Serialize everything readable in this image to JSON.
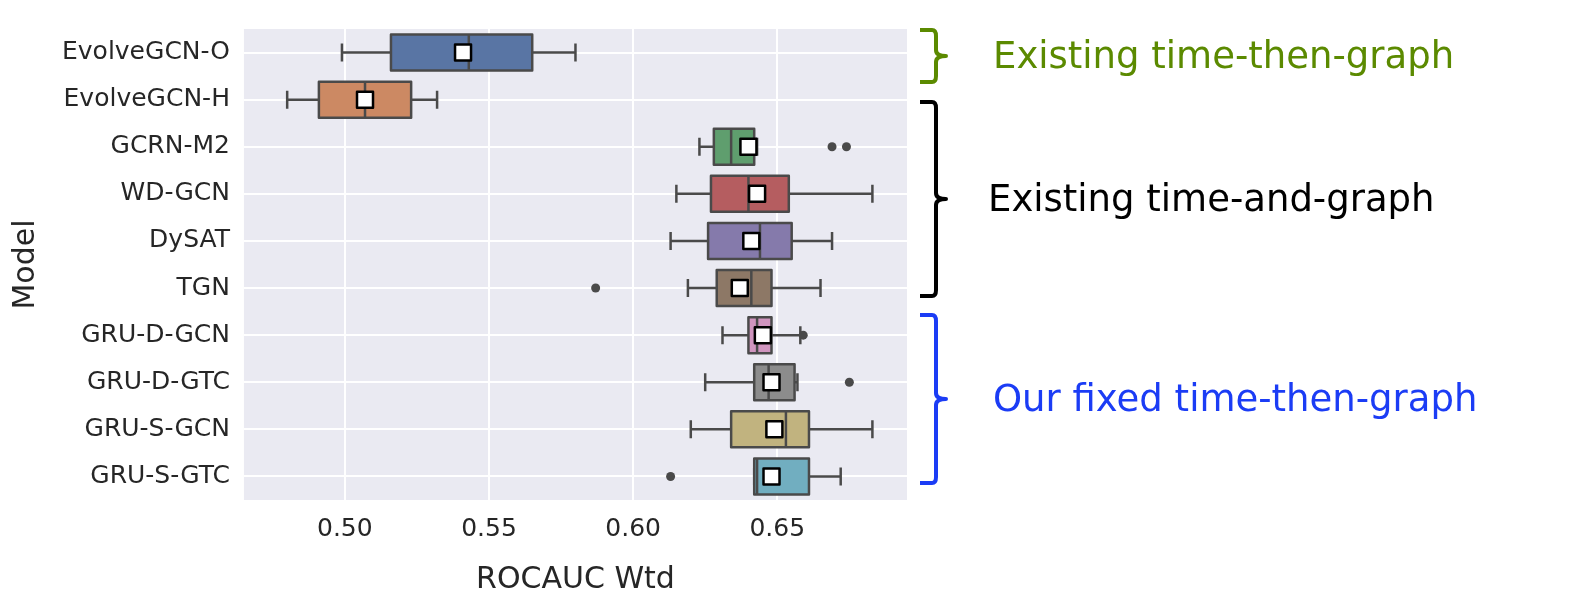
{
  "chart_data": {
    "type": "box",
    "xlabel": "ROCAUC Wtd",
    "ylabel": "Model",
    "orientation": "horizontal",
    "categories": [
      "EvolveGCN-O",
      "EvolveGCN-H",
      "GCRN-M2",
      "WD-GCN",
      "DySAT",
      "TGN",
      "GRU-D-GCN",
      "GRU-D-GTC",
      "GRU-S-GCN",
      "GRU-S-GTC"
    ],
    "colors": [
      "#5975a4",
      "#cc8963",
      "#5f9e6e",
      "#b55d60",
      "#857aab",
      "#8d7866",
      "#d095bf",
      "#8c8c8c",
      "#c1b37f",
      "#71aec0"
    ],
    "boxes": [
      {
        "low": 0.499,
        "q1": 0.516,
        "median": 0.543,
        "q3": 0.565,
        "high": 0.58,
        "mean": 0.541
      },
      {
        "low": 0.48,
        "q1": 0.491,
        "median": 0.507,
        "q3": 0.523,
        "high": 0.532,
        "mean": 0.507
      },
      {
        "low": 0.623,
        "q1": 0.628,
        "median": 0.634,
        "q3": 0.642,
        "high": 0.643,
        "mean": 0.64,
        "outliers": [
          0.669,
          0.674
        ]
      },
      {
        "low": 0.615,
        "q1": 0.627,
        "median": 0.64,
        "q3": 0.654,
        "high": 0.683,
        "mean": 0.643
      },
      {
        "low": 0.613,
        "q1": 0.626,
        "median": 0.644,
        "q3": 0.655,
        "high": 0.669,
        "mean": 0.641
      },
      {
        "low": 0.619,
        "q1": 0.629,
        "median": 0.641,
        "q3": 0.648,
        "high": 0.665,
        "mean": 0.637,
        "outliers": [
          0.587
        ]
      },
      {
        "low": 0.631,
        "q1": 0.64,
        "median": 0.643,
        "q3": 0.648,
        "high": 0.658,
        "mean": 0.645,
        "outliers": [
          0.659
        ]
      },
      {
        "low": 0.625,
        "q1": 0.642,
        "median": 0.647,
        "q3": 0.656,
        "high": 0.657,
        "mean": 0.648,
        "outliers": [
          0.675
        ]
      },
      {
        "low": 0.62,
        "q1": 0.634,
        "median": 0.653,
        "q3": 0.661,
        "high": 0.683,
        "mean": 0.649
      },
      {
        "low": 0.642,
        "q1": 0.642,
        "median": 0.643,
        "q3": 0.661,
        "high": 0.672,
        "mean": 0.648,
        "outliers": [
          0.613
        ]
      }
    ],
    "xlim": [
      0.465,
      0.695
    ],
    "xticks": [
      {
        "value": 0.5,
        "label": "0.50"
      },
      {
        "value": 0.55,
        "label": "0.55"
      },
      {
        "value": 0.6,
        "label": "0.60"
      },
      {
        "value": 0.65,
        "label": "0.65"
      }
    ],
    "grid": true,
    "annotations": [
      "Existing time-then-graph",
      "Existing time-and-graph",
      "Our fixed time-then-graph"
    ]
  }
}
